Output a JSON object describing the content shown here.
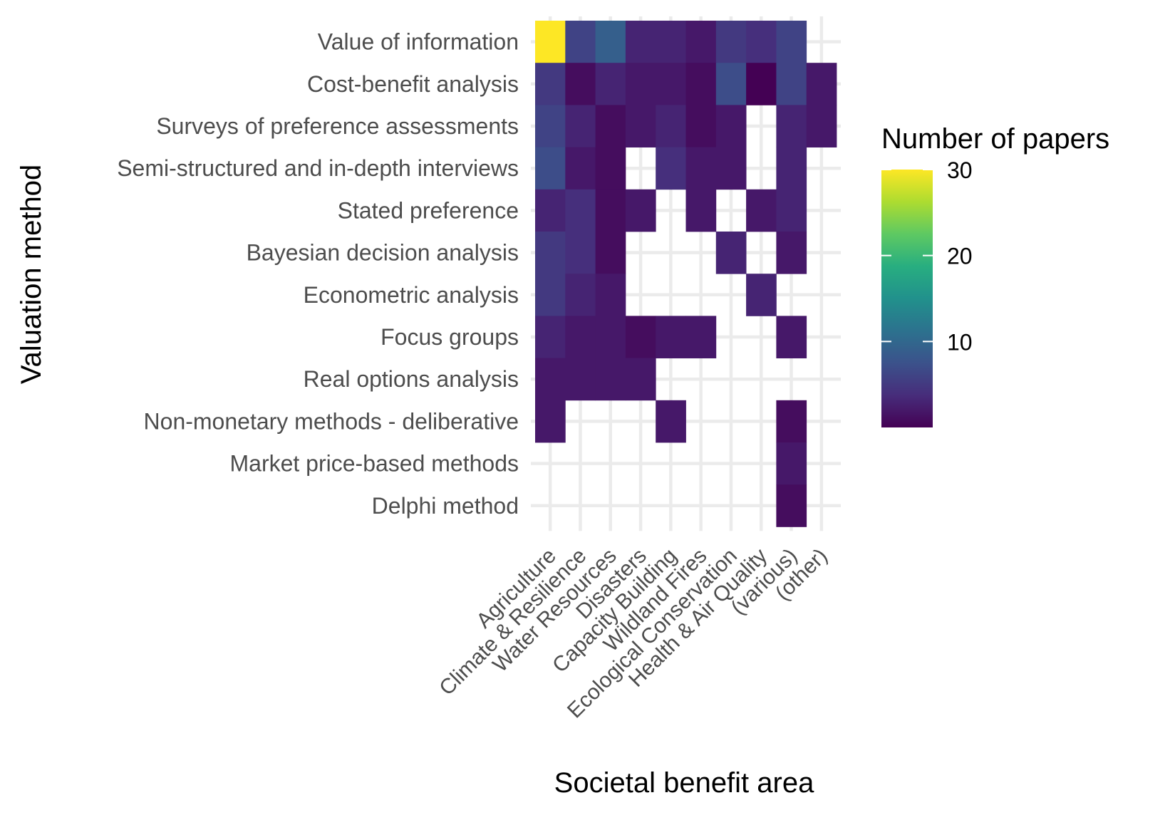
{
  "chart_data": {
    "type": "heatmap",
    "xlabel": "Societal benefit area",
    "ylabel": "Valuation method",
    "x_categories": [
      "Agriculture",
      "Climate & Resilience",
      "Water Resources",
      "Disasters",
      "Capacity Building",
      "Wildland Fires",
      "Ecological Conservation",
      "Health & Air Quality",
      "(various)",
      "(other)"
    ],
    "y_categories": [
      "Value of information",
      "Cost-benefit analysis",
      "Surveys of preference assessments",
      "Semi-structured and in-depth interviews",
      "Stated preference",
      "Bayesian decision analysis",
      "Econometric analysis",
      "Focus groups",
      "Real options analysis",
      "Non-monetary methods - deliberative",
      "Market price-based methods",
      "Delphi method"
    ],
    "values": [
      [
        30,
        6,
        9,
        3,
        3,
        2,
        5,
        4,
        6,
        null
      ],
      [
        5,
        1,
        3,
        2,
        2,
        1,
        7,
        0,
        6,
        2
      ],
      [
        6,
        3,
        1,
        2,
        3,
        1,
        2,
        null,
        3,
        2
      ],
      [
        7,
        2,
        1,
        null,
        4,
        2,
        2,
        null,
        3,
        null
      ],
      [
        3,
        4,
        1,
        2,
        null,
        2,
        null,
        2,
        3,
        null
      ],
      [
        5,
        4,
        1,
        null,
        null,
        null,
        3,
        null,
        2,
        null
      ],
      [
        5,
        3,
        2,
        null,
        null,
        null,
        null,
        3,
        null,
        null
      ],
      [
        3,
        2,
        2,
        1,
        2,
        2,
        null,
        null,
        2,
        null
      ],
      [
        2,
        2,
        2,
        2,
        null,
        null,
        null,
        null,
        null,
        null
      ],
      [
        2,
        null,
        null,
        null,
        2,
        null,
        null,
        null,
        1,
        null
      ],
      [
        null,
        null,
        null,
        null,
        null,
        null,
        null,
        null,
        2,
        null
      ],
      [
        null,
        null,
        null,
        null,
        null,
        null,
        null,
        null,
        1,
        null
      ]
    ],
    "legend": {
      "title": "Number of papers",
      "ticks": [
        10,
        20,
        30
      ],
      "range": [
        0,
        30
      ],
      "position": "right",
      "colormap": "viridis"
    },
    "grid": true
  }
}
